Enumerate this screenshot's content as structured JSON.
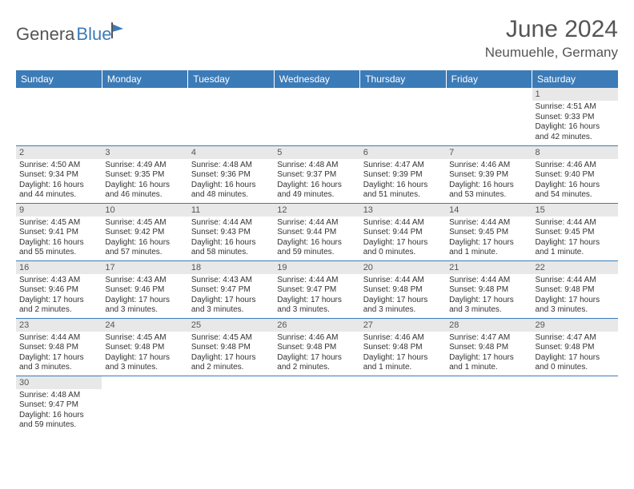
{
  "logo": {
    "t1": "Genera",
    "t2": "Blue"
  },
  "header": {
    "title": "June 2024",
    "location": "Neumuehle, Germany"
  },
  "colors": {
    "header_bg": "#3b7bb8",
    "header_fg": "#ffffff",
    "daybar_bg": "#e8e8e8",
    "border": "#3b7bb8",
    "text": "#555555"
  },
  "weekdays": [
    "Sunday",
    "Monday",
    "Tuesday",
    "Wednesday",
    "Thursday",
    "Friday",
    "Saturday"
  ],
  "weeks": [
    [
      null,
      null,
      null,
      null,
      null,
      null,
      {
        "n": "1",
        "sr": "4:51 AM",
        "ss": "9:33 PM",
        "dl": "16 hours and 42 minutes."
      }
    ],
    [
      {
        "n": "2",
        "sr": "4:50 AM",
        "ss": "9:34 PM",
        "dl": "16 hours and 44 minutes."
      },
      {
        "n": "3",
        "sr": "4:49 AM",
        "ss": "9:35 PM",
        "dl": "16 hours and 46 minutes."
      },
      {
        "n": "4",
        "sr": "4:48 AM",
        "ss": "9:36 PM",
        "dl": "16 hours and 48 minutes."
      },
      {
        "n": "5",
        "sr": "4:48 AM",
        "ss": "9:37 PM",
        "dl": "16 hours and 49 minutes."
      },
      {
        "n": "6",
        "sr": "4:47 AM",
        "ss": "9:39 PM",
        "dl": "16 hours and 51 minutes."
      },
      {
        "n": "7",
        "sr": "4:46 AM",
        "ss": "9:39 PM",
        "dl": "16 hours and 53 minutes."
      },
      {
        "n": "8",
        "sr": "4:46 AM",
        "ss": "9:40 PM",
        "dl": "16 hours and 54 minutes."
      }
    ],
    [
      {
        "n": "9",
        "sr": "4:45 AM",
        "ss": "9:41 PM",
        "dl": "16 hours and 55 minutes."
      },
      {
        "n": "10",
        "sr": "4:45 AM",
        "ss": "9:42 PM",
        "dl": "16 hours and 57 minutes."
      },
      {
        "n": "11",
        "sr": "4:44 AM",
        "ss": "9:43 PM",
        "dl": "16 hours and 58 minutes."
      },
      {
        "n": "12",
        "sr": "4:44 AM",
        "ss": "9:44 PM",
        "dl": "16 hours and 59 minutes."
      },
      {
        "n": "13",
        "sr": "4:44 AM",
        "ss": "9:44 PM",
        "dl": "17 hours and 0 minutes."
      },
      {
        "n": "14",
        "sr": "4:44 AM",
        "ss": "9:45 PM",
        "dl": "17 hours and 1 minute."
      },
      {
        "n": "15",
        "sr": "4:44 AM",
        "ss": "9:45 PM",
        "dl": "17 hours and 1 minute."
      }
    ],
    [
      {
        "n": "16",
        "sr": "4:43 AM",
        "ss": "9:46 PM",
        "dl": "17 hours and 2 minutes."
      },
      {
        "n": "17",
        "sr": "4:43 AM",
        "ss": "9:46 PM",
        "dl": "17 hours and 3 minutes."
      },
      {
        "n": "18",
        "sr": "4:43 AM",
        "ss": "9:47 PM",
        "dl": "17 hours and 3 minutes."
      },
      {
        "n": "19",
        "sr": "4:44 AM",
        "ss": "9:47 PM",
        "dl": "17 hours and 3 minutes."
      },
      {
        "n": "20",
        "sr": "4:44 AM",
        "ss": "9:48 PM",
        "dl": "17 hours and 3 minutes."
      },
      {
        "n": "21",
        "sr": "4:44 AM",
        "ss": "9:48 PM",
        "dl": "17 hours and 3 minutes."
      },
      {
        "n": "22",
        "sr": "4:44 AM",
        "ss": "9:48 PM",
        "dl": "17 hours and 3 minutes."
      }
    ],
    [
      {
        "n": "23",
        "sr": "4:44 AM",
        "ss": "9:48 PM",
        "dl": "17 hours and 3 minutes."
      },
      {
        "n": "24",
        "sr": "4:45 AM",
        "ss": "9:48 PM",
        "dl": "17 hours and 3 minutes."
      },
      {
        "n": "25",
        "sr": "4:45 AM",
        "ss": "9:48 PM",
        "dl": "17 hours and 2 minutes."
      },
      {
        "n": "26",
        "sr": "4:46 AM",
        "ss": "9:48 PM",
        "dl": "17 hours and 2 minutes."
      },
      {
        "n": "27",
        "sr": "4:46 AM",
        "ss": "9:48 PM",
        "dl": "17 hours and 1 minute."
      },
      {
        "n": "28",
        "sr": "4:47 AM",
        "ss": "9:48 PM",
        "dl": "17 hours and 1 minute."
      },
      {
        "n": "29",
        "sr": "4:47 AM",
        "ss": "9:48 PM",
        "dl": "17 hours and 0 minutes."
      }
    ],
    [
      {
        "n": "30",
        "sr": "4:48 AM",
        "ss": "9:47 PM",
        "dl": "16 hours and 59 minutes."
      },
      null,
      null,
      null,
      null,
      null,
      null
    ]
  ],
  "labels": {
    "sunrise": "Sunrise:",
    "sunset": "Sunset:",
    "daylight": "Daylight:"
  }
}
